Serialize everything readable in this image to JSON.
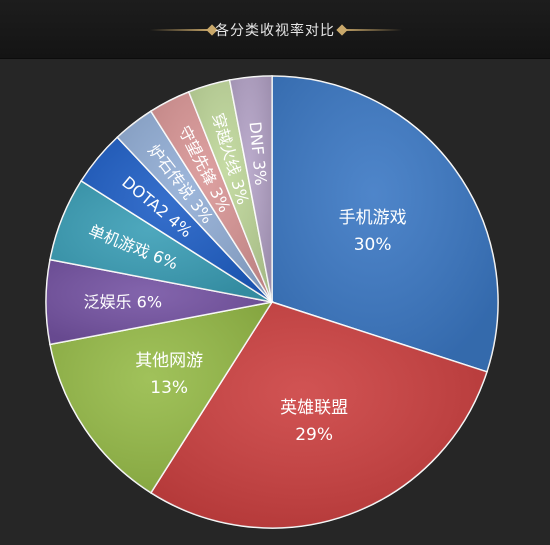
{
  "header": {
    "title": "各分类收视率对比"
  },
  "chart_data": {
    "type": "pie",
    "title": "各分类收视率对比",
    "start_angle_deg": 0,
    "direction": "clockwise",
    "slices": [
      {
        "name": "手机游戏",
        "value": 30,
        "label": "30%",
        "color": "#3b78c4",
        "label_style": "stacked"
      },
      {
        "name": "英雄联盟",
        "value": 29,
        "label": "29%",
        "color": "#cc4040",
        "label_style": "stacked"
      },
      {
        "name": "其他网游",
        "value": 13,
        "label": "13%",
        "color": "#96bb48",
        "label_style": "stacked"
      },
      {
        "name": "泛娱乐",
        "value": 6,
        "label": "6%",
        "color": "#7553a3",
        "label_style": "inline"
      },
      {
        "name": "单机游戏",
        "value": 6,
        "label": "6%",
        "color": "#3a9eb6",
        "label_style": "inline"
      },
      {
        "name": "DOTA2",
        "value": 4,
        "label": "4%",
        "color": "#1f5fc6",
        "label_style": "inline"
      },
      {
        "name": "炉石传说",
        "value": 3,
        "label": "3%",
        "color": "#92aed6",
        "label_style": "inline"
      },
      {
        "name": "守望先锋",
        "value": 3,
        "label": "3%",
        "color": "#d99696",
        "label_style": "inline"
      },
      {
        "name": "穿越火线",
        "value": 3,
        "label": "3%",
        "color": "#bfd79a",
        "label_style": "inline"
      },
      {
        "name": "DNF",
        "value": 3,
        "label": "3%",
        "color": "#b3a2c6",
        "label_style": "inline"
      }
    ]
  }
}
